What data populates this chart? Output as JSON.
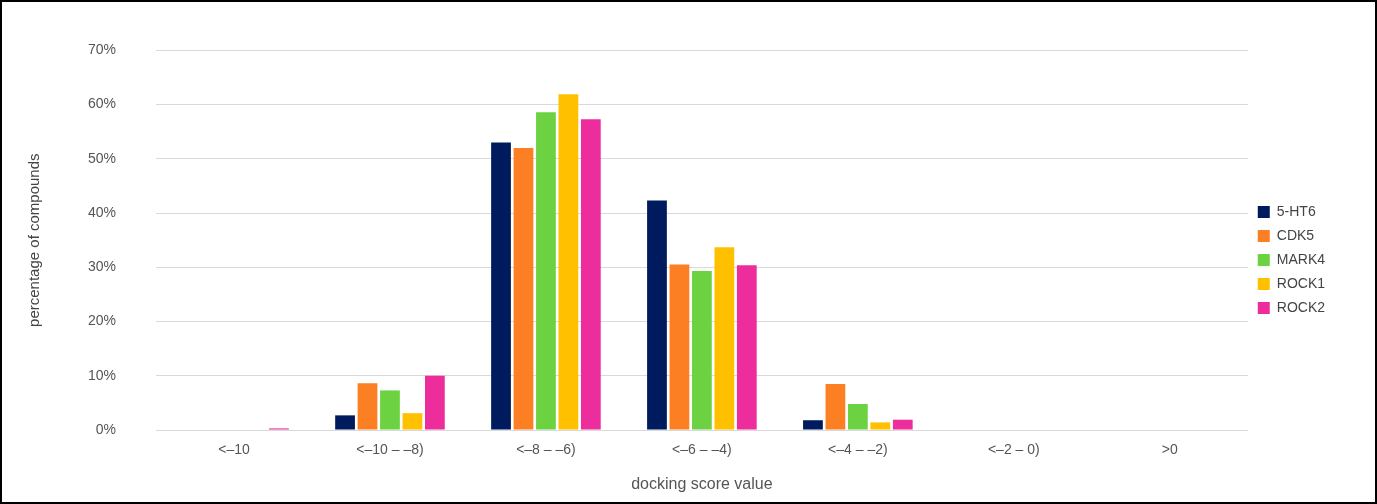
{
  "chart_data": {
    "type": "bar",
    "xlabel": "docking score value",
    "ylabel": "percentage of compounds",
    "categories": [
      "<–10",
      "<–10 – –8)",
      "<–8 – –6)",
      "<–6 – –4)",
      "<–4 – –2)",
      "<–2 – 0)",
      ">0"
    ],
    "series": [
      {
        "name": "5-HT6",
        "color": "#001a5e",
        "values": [
          0,
          2.7,
          53.0,
          42.3,
          1.8,
          0,
          0
        ]
      },
      {
        "name": "CDK5",
        "color": "#fd7f23",
        "values": [
          0,
          8.6,
          52.0,
          30.5,
          8.5,
          0,
          0
        ]
      },
      {
        "name": "MARK4",
        "color": "#6cd242",
        "values": [
          0,
          7.3,
          58.6,
          29.3,
          4.8,
          0,
          0
        ]
      },
      {
        "name": "ROCK1",
        "color": "#ffc000",
        "values": [
          0,
          3.1,
          61.9,
          33.7,
          1.4,
          0,
          0
        ]
      },
      {
        "name": "ROCK2",
        "color": "#ee2d9c",
        "values": [
          0.3,
          10.0,
          57.3,
          30.4,
          1.9,
          0,
          0
        ]
      }
    ],
    "ylim": [
      0,
      70
    ],
    "yticks": [
      {
        "value": 0,
        "label": "0%"
      },
      {
        "value": 10,
        "label": "10%"
      },
      {
        "value": 20,
        "label": "20%"
      },
      {
        "value": 30,
        "label": "30%"
      },
      {
        "value": 40,
        "label": "40%"
      },
      {
        "value": 50,
        "label": "50%"
      },
      {
        "value": 60,
        "label": "60%"
      },
      {
        "value": 70,
        "label": "70%"
      }
    ],
    "grid": "y",
    "legend": "right"
  }
}
